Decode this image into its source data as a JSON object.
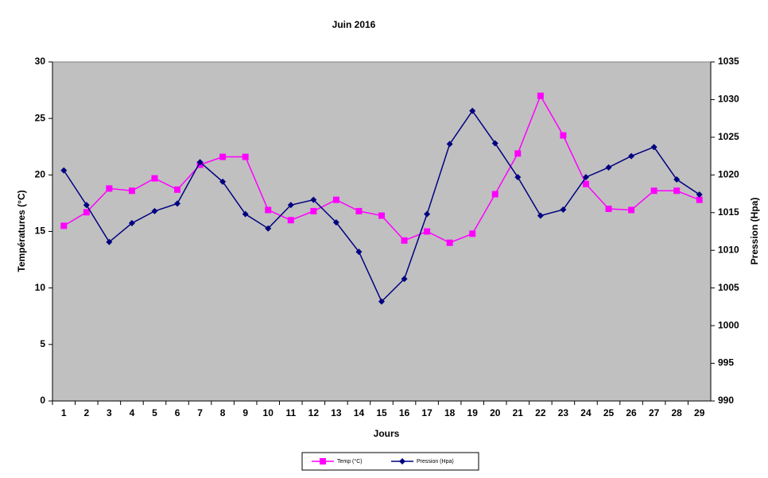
{
  "chart_data": {
    "type": "line",
    "title": "Juin 2016",
    "x_label": "Jours",
    "y_label": "Températures (°C)",
    "y2_label": "Pression (Hpa)",
    "categories": [
      1,
      2,
      3,
      4,
      5,
      6,
      7,
      8,
      9,
      10,
      11,
      12,
      13,
      14,
      15,
      16,
      17,
      18,
      19,
      20,
      21,
      22,
      23,
      24,
      25,
      26,
      27,
      28,
      29
    ],
    "series": [
      {
        "name": "Temp (°C)",
        "color": "#ff00ff",
        "marker": "square",
        "values": [
          15.5,
          16.7,
          18.8,
          18.6,
          19.7,
          18.7,
          20.9,
          21.6,
          21.6,
          16.9,
          16.0,
          16.8,
          17.8,
          16.8,
          16.4,
          14.2,
          15.0,
          14.0,
          14.8,
          18.3,
          21.9,
          27.0,
          23.5,
          19.2,
          17.0,
          16.9,
          18.6,
          18.6,
          17.8
        ]
      },
      {
        "name": "Pression (Hpa)",
        "color": "#000080",
        "marker": "diamond",
        "axis": "y2",
        "values": [
          1020.6,
          1016.0,
          1011.1,
          1013.6,
          1015.2,
          1016.2,
          1021.7,
          1019.1,
          1014.8,
          1012.9,
          1016.0,
          1016.7,
          1013.7,
          1009.8,
          1003.2,
          1006.2,
          1014.8,
          1024.1,
          1028.5,
          1024.2,
          1019.7,
          1014.6,
          1015.4,
          1019.7,
          1021.0,
          1022.5,
          1023.7,
          1019.4,
          1017.4
        ]
      }
    ],
    "ylim": [
      0,
      30
    ],
    "yticks": [
      0,
      5,
      10,
      15,
      20,
      25,
      30
    ],
    "y2lim": [
      990,
      1035
    ],
    "y2ticks": [
      990,
      995,
      1000,
      1005,
      1010,
      1015,
      1020,
      1025,
      1030,
      1035
    ],
    "legend": "bottom",
    "plot_background": "#c0c0c0"
  }
}
